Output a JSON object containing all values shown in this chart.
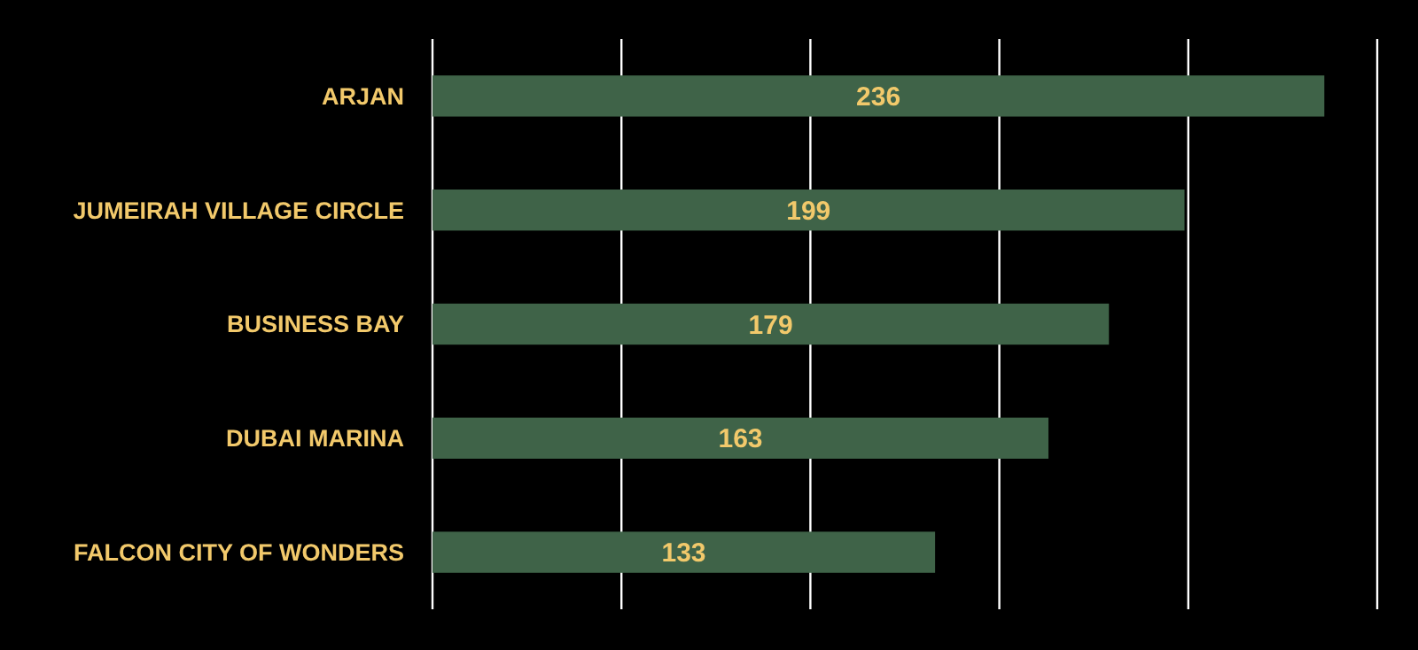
{
  "chart_data": {
    "type": "bar",
    "orientation": "horizontal",
    "categories": [
      "ARJAN",
      "JUMEIRAH VILLAGE CIRCLE",
      "BUSINESS BAY",
      "DUBAI MARINA",
      "FALCON CITY OF WONDERS"
    ],
    "values": [
      236,
      199,
      179,
      163,
      133
    ],
    "color": "#3f6348",
    "data_labels": true,
    "xlim": [
      0,
      250
    ],
    "xticks": [
      {
        "value": 0,
        "label": null
      },
      {
        "value": 50,
        "label": null
      },
      {
        "value": 100,
        "label": null
      },
      {
        "value": 150,
        "label": null
      },
      {
        "value": 200,
        "label": null
      },
      {
        "value": 250,
        "label": null
      }
    ],
    "tick_labels": "y",
    "grid": "x"
  }
}
